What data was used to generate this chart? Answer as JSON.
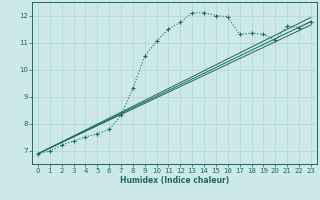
{
  "xlabel": "Humidex (Indice chaleur)",
  "ylabel": "",
  "bg_color": "#cce8e8",
  "grid_color": "#b0d4d4",
  "line_color": "#1a6b5a",
  "xlim": [
    -0.5,
    23.5
  ],
  "ylim": [
    6.5,
    12.5
  ],
  "xticks": [
    0,
    1,
    2,
    3,
    4,
    5,
    6,
    7,
    8,
    9,
    10,
    11,
    12,
    13,
    14,
    15,
    16,
    17,
    18,
    19,
    20,
    21,
    22,
    23
  ],
  "yticks": [
    7,
    8,
    9,
    10,
    11,
    12
  ],
  "curve1_x": [
    0,
    1,
    2,
    3,
    4,
    5,
    6,
    7,
    8,
    9,
    10,
    11,
    12,
    13,
    14,
    15,
    16,
    17,
    18,
    19,
    20,
    21,
    22,
    23
  ],
  "curve1_y": [
    6.88,
    6.98,
    7.2,
    7.35,
    7.5,
    7.62,
    7.78,
    8.3,
    9.3,
    10.5,
    11.05,
    11.5,
    11.75,
    12.1,
    12.1,
    12.0,
    11.95,
    11.3,
    11.35,
    11.3,
    11.1,
    11.62,
    11.55,
    11.75
  ],
  "line1_x": [
    0,
    23
  ],
  "line1_y": [
    6.88,
    11.75
  ],
  "line2_x": [
    0,
    23
  ],
  "line2_y": [
    6.88,
    11.85
  ],
  "line3_x": [
    0,
    23
  ],
  "line3_y": [
    6.88,
    11.95
  ],
  "straight_lines": [
    {
      "x": [
        0,
        23
      ],
      "y": [
        6.88,
        11.65
      ]
    },
    {
      "x": [
        0,
        23
      ],
      "y": [
        6.88,
        11.78
      ]
    },
    {
      "x": [
        0,
        23
      ],
      "y": [
        6.88,
        11.93
      ]
    }
  ]
}
